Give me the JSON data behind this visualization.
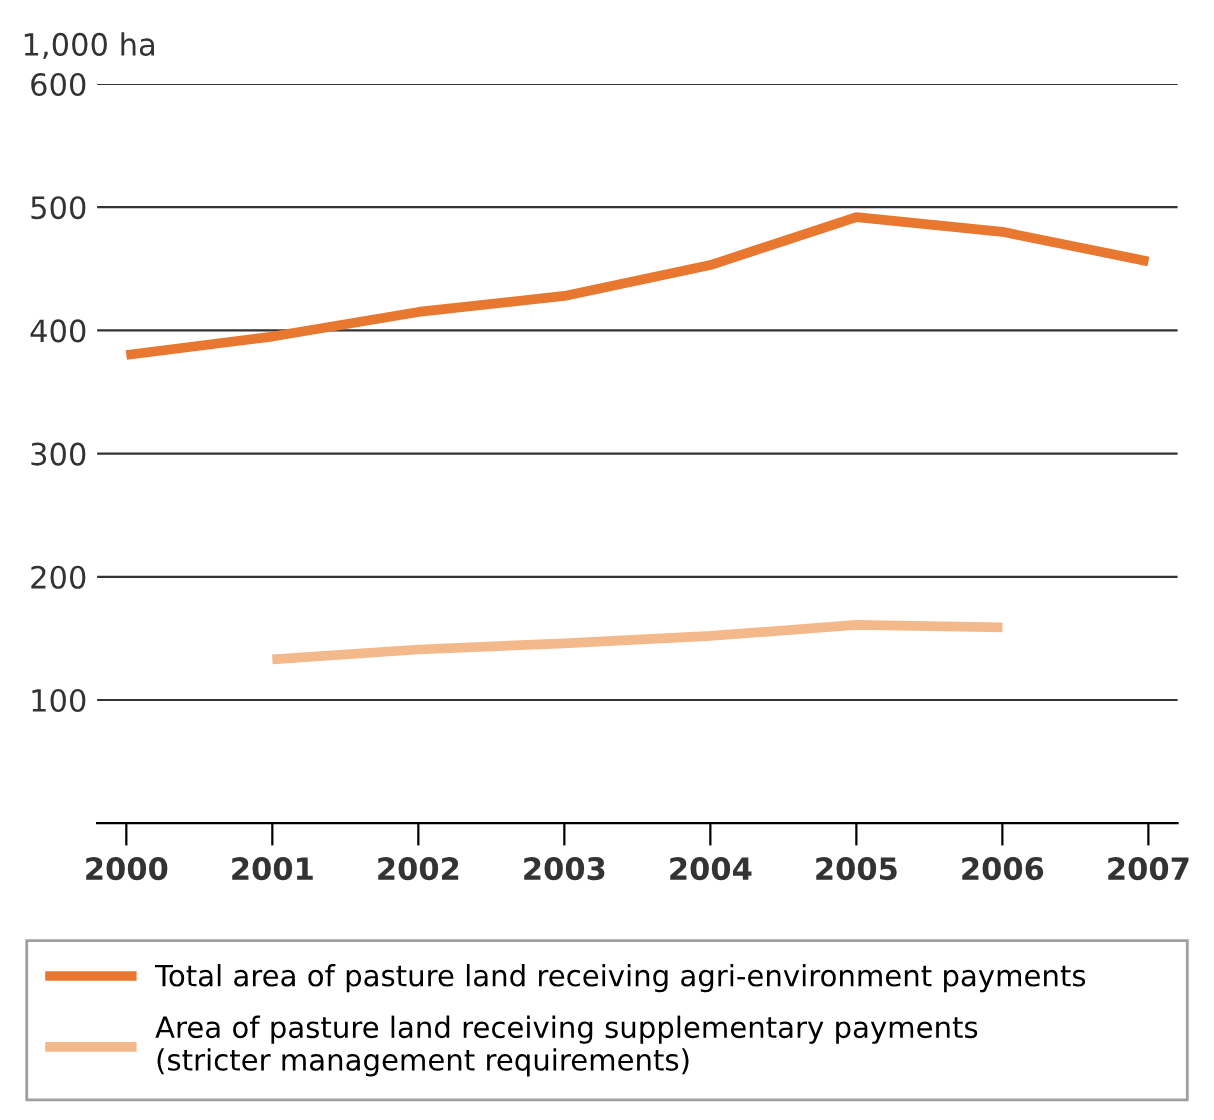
{
  "chart_data": {
    "type": "line",
    "ylabel": "1,000 ha",
    "x": [
      2000,
      2001,
      2002,
      2003,
      2004,
      2005,
      2006,
      2007
    ],
    "xlim": [
      1999.8,
      2007.2
    ],
    "xticks": [
      2000,
      2001,
      2002,
      2003,
      2004,
      2005,
      2006,
      2007
    ],
    "ylim": [
      0,
      600
    ],
    "yticks": [
      100,
      200,
      300,
      400,
      500,
      600
    ],
    "grid": "y",
    "legend": "bottom",
    "marker": "none",
    "line_style": "solid",
    "series": [
      {
        "name": "Total area of pasture land receiving agri-environment payments",
        "color": "#e8782f",
        "values": [
          380,
          395,
          415,
          428,
          453,
          492,
          480,
          456
        ]
      },
      {
        "name": "Area of pasture land receiving supplementary payments\n(stricter management requirements)",
        "color": "#f4b98a",
        "values": [
          null,
          133,
          141,
          146,
          152,
          161,
          159,
          null
        ]
      }
    ]
  }
}
